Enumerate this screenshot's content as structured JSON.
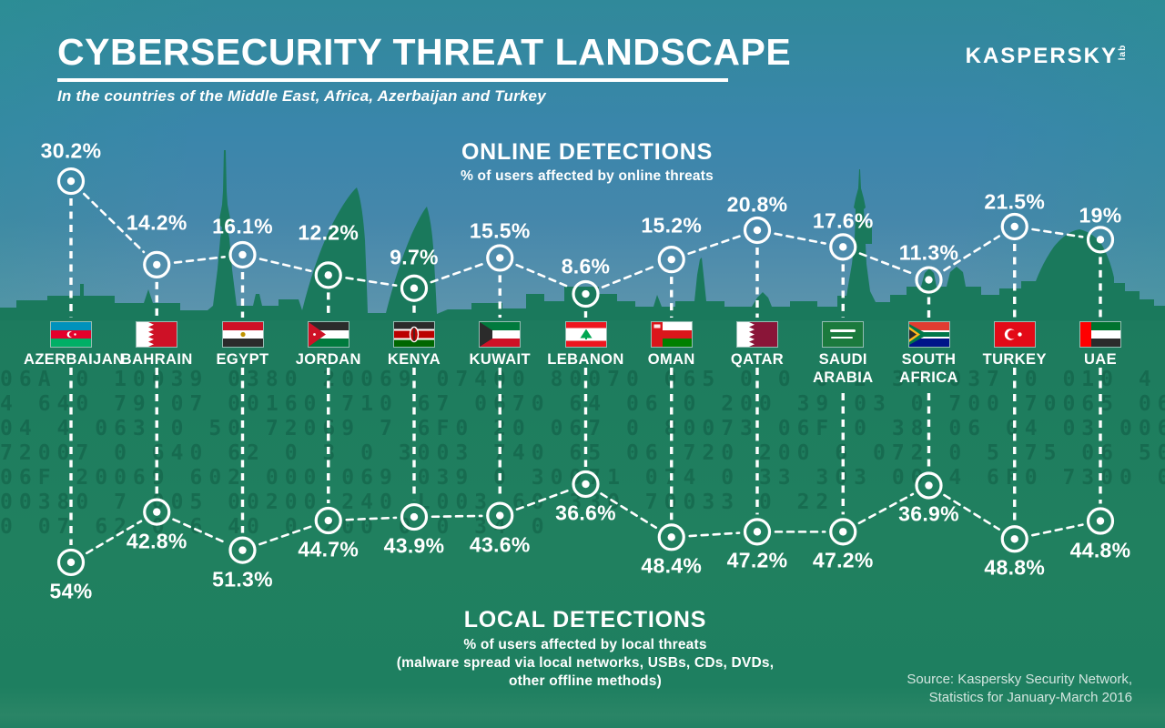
{
  "header": {
    "title": "CYBERSECURITY THREAT LANDSCAPE",
    "subtitle": "In the countries of the Middle East, Africa, Azerbaijan and Turkey",
    "logo_brand": "KASPERSKY",
    "logo_suffix": "lab"
  },
  "online_section": {
    "title": "ONLINE DETECTIONS",
    "subtitle": "% of users affected by online threats"
  },
  "local_section": {
    "title": "LOCAL DETECTIONS",
    "subtitle_line1": "% of users affected by local threats",
    "subtitle_line2": "(malware spread via local networks, USBs, CDs, DVDs,",
    "subtitle_line3": "other offline methods)"
  },
  "source": {
    "line1": "Source: Kaspersky Security Network,",
    "line2": "Statistics for January-March 2016"
  },
  "colors": {
    "sky_top": "#30899a",
    "sky_horizon": "#5e95ad",
    "ground_green": "#1e7c60",
    "skyline_green": "#1a795c",
    "line_white": "#ffffff"
  },
  "chart_data": {
    "type": "line",
    "categories": [
      "AZERBAIJAN",
      "BAHRAIN",
      "EGYPT",
      "JORDAN",
      "KENYA",
      "KUWAIT",
      "LEBANON",
      "OMAN",
      "QATAR",
      "SAUDI ARABIA",
      "SOUTH AFRICA",
      "TURKEY",
      "UAE"
    ],
    "flags": [
      "azerbaijan",
      "bahrain",
      "egypt",
      "jordan",
      "kenya",
      "kuwait",
      "lebanon",
      "oman",
      "qatar",
      "saudi-arabia",
      "south-africa",
      "turkey",
      "uae"
    ],
    "series": [
      {
        "name": "ONLINE DETECTIONS",
        "unit": "% of users affected by online threats",
        "values": [
          30.2,
          14.2,
          16.1,
          12.2,
          9.7,
          15.5,
          8.6,
          15.2,
          20.8,
          17.6,
          11.3,
          21.5,
          19
        ],
        "labels": [
          "30.2%",
          "14.2%",
          "16.1%",
          "12.2%",
          "9.7%",
          "15.5%",
          "8.6%",
          "15.2%",
          "20.8%",
          "17.6%",
          "11.3%",
          "21.5%",
          "19%"
        ]
      },
      {
        "name": "LOCAL DETECTIONS",
        "unit": "% of users affected by local threats",
        "values": [
          54,
          42.8,
          51.3,
          44.7,
          43.9,
          43.6,
          36.6,
          48.4,
          47.2,
          47.2,
          36.9,
          48.8,
          44.8
        ],
        "labels": [
          "54%",
          "42.8%",
          "51.3%",
          "44.7%",
          "43.9%",
          "43.6%",
          "36.6%",
          "48.4%",
          "47.2%",
          "47.2%",
          "36.9%",
          "48.8%",
          "44.8%"
        ]
      }
    ],
    "style": "dashed white polyline with ring markers",
    "layout_hint": {
      "online_axis": "higher % plotted higher, above city skyline",
      "local_axis": "mirrored below: higher % plotted lower",
      "grid": false,
      "legend": false
    }
  },
  "background_code_rows": [
    "06A 0 10039 0380  20069 07400 80070 065 0 0 0 2 34 037 0 010    4    0 038 0",
    "4 640 79 07 00160 710 67 0670 64 06 0 200 39 03 0 700 70065 06A00 64 020 74 06 70",
    "04 4 063 0 50 72069 7 6F0 20 067 0 80073 06F 0 38 06 04 03 006706 6 0 1 065 0 2 06",
    "72007 0 640 62 0 3 0 3003 740 65 06 720 200 6 072 0 5 75 06 50 6 0 620 LL 6",
    "06F 20069 602 000 069 039 0 30071 074 0 33 303 00 4 6F0 7300 0 740 0300 23",
    "00380 7 005 00200 240   L003     60  330 70033 0   22",
    "0 07 62 0 6  40 0 200 0  0 34 0"
  ]
}
